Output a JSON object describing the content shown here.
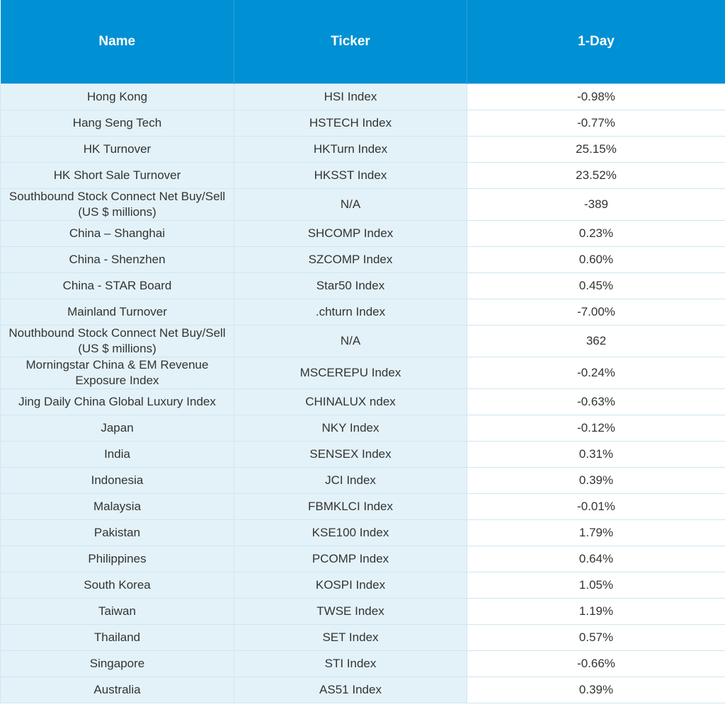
{
  "table": {
    "headers": [
      "Name",
      "Ticker",
      "1-Day"
    ],
    "rows": [
      [
        "Hong Kong",
        "HSI Index",
        "-0.98%"
      ],
      [
        "Hang Seng Tech",
        "HSTECH Index",
        "-0.77%"
      ],
      [
        "HK Turnover",
        "HKTurn Index",
        "25.15%"
      ],
      [
        "HK Short Sale Turnover",
        "HKSST Index",
        "23.52%"
      ],
      [
        "Southbound Stock Connect Net Buy/Sell (US $ millions)",
        "N/A",
        "-389"
      ],
      [
        "China – Shanghai",
        "SHCOMP Index",
        "0.23%"
      ],
      [
        "China - Shenzhen",
        "SZCOMP Index",
        "0.60%"
      ],
      [
        "China - STAR Board",
        "Star50 Index",
        "0.45%"
      ],
      [
        "Mainland Turnover",
        ".chturn Index",
        "-7.00%"
      ],
      [
        "Nouthbound Stock Connect Net Buy/Sell (US $ millions)",
        "N/A",
        "362"
      ],
      [
        "Morningstar China & EM Revenue Exposure Index",
        "MSCEREPU Index",
        "-0.24%"
      ],
      [
        "Jing Daily China Global Luxury Index",
        "CHINALUX ndex",
        "-0.63%"
      ],
      [
        "Japan",
        "NKY Index",
        "-0.12%"
      ],
      [
        "India",
        "SENSEX Index",
        "0.31%"
      ],
      [
        "Indonesia",
        "JCI Index",
        "0.39%"
      ],
      [
        "Malaysia",
        "FBMKLCI Index",
        "-0.01%"
      ],
      [
        "Pakistan",
        "KSE100 Index",
        "1.79%"
      ],
      [
        "Philippines",
        "PCOMP Index",
        "0.64%"
      ],
      [
        "South Korea",
        "KOSPI Index",
        "1.05%"
      ],
      [
        "Taiwan",
        "TWSE Index",
        "1.19%"
      ],
      [
        "Thailand",
        "SET Index",
        "0.57%"
      ],
      [
        "Singapore",
        "STI Index",
        "-0.66%"
      ],
      [
        "Australia",
        "AS51 Index",
        "0.39%"
      ]
    ]
  }
}
